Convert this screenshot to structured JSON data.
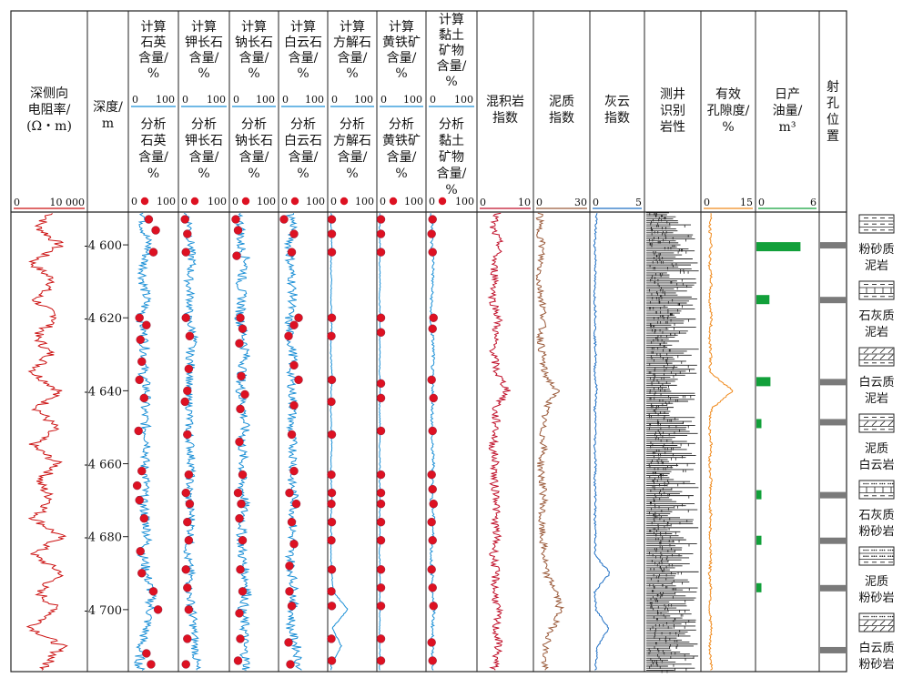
{
  "colors": {
    "resistivity": "#cc1111",
    "mineral": "#1a8fd6",
    "dot": "#dd1122",
    "mixed": "#c0102a",
    "mud": "#9a5a3a",
    "dolo": "#1f6fc4",
    "porosity": "#f08a1c",
    "oil": "#12a03a",
    "perf": "#7a7a7a"
  },
  "tracks": {
    "res": {
      "header": [
        "深侧向",
        "电阻率/",
        "(Ω・m)"
      ],
      "scale_min": "0",
      "scale_max": "10 000"
    },
    "depth": {
      "header": [
        "深度/",
        "m"
      ]
    },
    "quartz": {
      "calc": [
        "计算",
        "石英",
        "含量/",
        "%"
      ],
      "analysis": [
        "分析",
        "石英",
        "含量/",
        "%"
      ],
      "scale_min": "0",
      "scale_max": "100",
      "dot_max": "100"
    },
    "kfeld": {
      "calc": [
        "计算",
        "钾长石",
        "含量/",
        "%"
      ],
      "analysis": [
        "分析",
        "钾长石",
        "含量/",
        "%"
      ],
      "scale_min": "0",
      "scale_max": "100",
      "dot_max": "100"
    },
    "plag": {
      "calc": [
        "计算",
        "钠长石",
        "含量/",
        "%"
      ],
      "analysis": [
        "分析",
        "钠长石",
        "含量/",
        "%"
      ],
      "scale_min": "0",
      "scale_max": "100",
      "dot_max": "100"
    },
    "dolo": {
      "calc": [
        "计算",
        "白云石",
        "含量/",
        "%"
      ],
      "analysis": [
        "分析",
        "白云石",
        "含量/",
        "%"
      ],
      "scale_min": "0",
      "scale_max": "100",
      "dot_max": "100"
    },
    "calc": {
      "calc": [
        "计算",
        "方解石",
        "含量/",
        "%"
      ],
      "analysis": [
        "分析",
        "方解石",
        "含量/",
        "%"
      ],
      "scale_min": "0",
      "scale_max": "100",
      "dot_max": "100"
    },
    "pyr": {
      "calc": [
        "计算",
        "黄铁矿",
        "含量/",
        "%"
      ],
      "analysis": [
        "分析",
        "黄铁矿",
        "含量/",
        "%"
      ],
      "scale_min": "0",
      "scale_max": "100",
      "dot_max": "100"
    },
    "clay": {
      "calc": [
        "计算",
        "黏土",
        "矿物",
        "含量/",
        "%"
      ],
      "analysis": [
        "分析",
        "黏土",
        "矿物",
        "含量/",
        "%"
      ],
      "scale_min": "0",
      "scale_max": "100",
      "dot_max": "100"
    },
    "mix": {
      "header": [
        "混积岩",
        "指数"
      ],
      "scale_min": "0",
      "scale_max": "10"
    },
    "mud": {
      "header": [
        "泥质",
        "指数"
      ],
      "scale_min": "0",
      "scale_max": "30"
    },
    "dolo_idx": {
      "header": [
        "灰云",
        "指数"
      ],
      "scale_min": "0",
      "scale_max": "5"
    },
    "litho": {
      "header": [
        "测井",
        "识别",
        "岩性"
      ]
    },
    "poro": {
      "header": [
        "有效",
        "孔隙度/",
        "%"
      ],
      "scale_min": "0",
      "scale_max": "15"
    },
    "oil": {
      "header": [
        "日产",
        "油量/",
        "m³"
      ],
      "scale_min": "0",
      "scale_max": "6"
    },
    "perf": {
      "header": [
        "射",
        "孔",
        "位",
        "置"
      ]
    }
  },
  "legend": [
    {
      "pattern": "dash-dash",
      "lines": [
        "粉砂质",
        "泥岩"
      ]
    },
    {
      "pattern": "brick-dash",
      "lines": [
        "石灰质",
        "泥岩"
      ]
    },
    {
      "pattern": "slash-dash",
      "lines": [
        "白云质",
        "泥岩"
      ]
    },
    {
      "pattern": "dash-slash",
      "lines": [
        "泥质",
        "白云岩"
      ]
    },
    {
      "pattern": "dots-brick",
      "lines": [
        "石灰质",
        "粉砂岩"
      ]
    },
    {
      "pattern": "dots-dash",
      "lines": [
        "泥质",
        "粉砂岩"
      ]
    },
    {
      "pattern": "dots-slash",
      "lines": [
        "白云质",
        "粉砂岩"
      ]
    }
  ],
  "chart_data": {
    "type": "line",
    "title": "",
    "y_axis": {
      "label": "深度/m",
      "range": [
        4591,
        4717
      ],
      "ticks": [
        4600,
        4620,
        4640,
        4660,
        4680,
        4700
      ],
      "tick_labels": [
        "-4 600",
        "-4 620",
        "-4 640",
        "-4 660",
        "-4 680",
        "-4 700"
      ]
    },
    "depth_curve_samples": [
      4591,
      4595,
      4600,
      4605,
      4610,
      4615,
      4620,
      4625,
      4630,
      4635,
      4640,
      4645,
      4650,
      4655,
      4660,
      4665,
      4670,
      4675,
      4680,
      4685,
      4690,
      4695,
      4700,
      4705,
      4710,
      4715
    ],
    "series": [
      {
        "name": "深侧向电阻率/(Ω・m)",
        "range": [
          0,
          10000
        ],
        "values": [
          5600,
          3400,
          6500,
          2600,
          5800,
          3000,
          6200,
          3200,
          5200,
          2800,
          6400,
          3400,
          5800,
          2700,
          6200,
          3600,
          5400,
          3000,
          6600,
          2800,
          6800,
          3400,
          6100,
          2600,
          6700,
          4600
        ]
      },
      {
        "name": "计算石英含量/%",
        "range": [
          0,
          100
        ],
        "values": [
          32,
          28,
          40,
          30,
          28,
          35,
          25,
          30,
          32,
          28,
          36,
          30,
          33,
          40,
          30,
          34,
          26,
          34,
          38,
          28,
          35,
          45,
          44,
          35,
          22,
          20
        ]
      },
      {
        "name": "计算钾长石含量/%",
        "range": [
          0,
          100
        ],
        "values": [
          15,
          20,
          22,
          25,
          18,
          22,
          16,
          30,
          20,
          24,
          14,
          20,
          18,
          22,
          24,
          20,
          18,
          24,
          22,
          14,
          22,
          18,
          26,
          28,
          32,
          34
        ]
      },
      {
        "name": "计算钠长石含量/%",
        "range": [
          0,
          100
        ],
        "values": [
          10,
          22,
          20,
          35,
          20,
          24,
          18,
          28,
          32,
          24,
          20,
          28,
          30,
          24,
          26,
          22,
          30,
          26,
          22,
          24,
          30,
          38,
          24,
          30,
          28,
          34
        ]
      },
      {
        "name": "计算白云石含量/%",
        "range": [
          0,
          100
        ],
        "values": [
          22,
          30,
          20,
          22,
          26,
          28,
          18,
          20,
          28,
          24,
          26,
          28,
          22,
          28,
          30,
          24,
          32,
          28,
          26,
          22,
          26,
          30,
          28,
          22,
          36,
          40
        ]
      },
      {
        "name": "计算方解石含量/%",
        "range": [
          0,
          100
        ],
        "values": [
          4,
          3,
          5,
          3,
          4,
          3,
          5,
          4,
          3,
          5,
          4,
          3,
          4,
          5,
          3,
          4,
          5,
          3,
          4,
          3,
          5,
          8,
          40,
          6,
          26,
          4
        ]
      },
      {
        "name": "计算黄铁矿含量/%",
        "range": [
          0,
          100
        ],
        "values": [
          3,
          2,
          3,
          2,
          3,
          2,
          3,
          2,
          3,
          2,
          3,
          2,
          3,
          2,
          3,
          2,
          3,
          2,
          3,
          2,
          3,
          2,
          3,
          2,
          3,
          2
        ]
      },
      {
        "name": "计算黏土矿物含量/%",
        "range": [
          0,
          100
        ],
        "values": [
          6,
          10,
          8,
          12,
          10,
          8,
          6,
          10,
          12,
          9,
          11,
          10,
          8,
          9,
          12,
          10,
          8,
          12,
          10,
          7,
          9,
          11,
          13,
          10,
          9,
          12
        ]
      },
      {
        "name": "混积岩指数",
        "range": [
          0,
          10
        ],
        "values": [
          3.5,
          2.5,
          4,
          2.8,
          3.2,
          2.6,
          3.8,
          3,
          2.8,
          3.4,
          5.5,
          3,
          3.4,
          2.6,
          3.2,
          2.8,
          3.6,
          3,
          3.4,
          2.8,
          3.2,
          3,
          3.6,
          3.2,
          3.8,
          3
        ]
      },
      {
        "name": "泥质指数",
        "range": [
          0,
          30
        ],
        "values": [
          3,
          2,
          4,
          3,
          2,
          4,
          5,
          3,
          4,
          5,
          12,
          6,
          4,
          5,
          3,
          4,
          5,
          3,
          4,
          5,
          6,
          12,
          14,
          10,
          6,
          5
        ]
      },
      {
        "name": "灰云指数",
        "range": [
          0,
          5
        ],
        "values": [
          0.5,
          0.4,
          0.3,
          0.4,
          0.3,
          0.3,
          0.4,
          0.3,
          0.4,
          0.3,
          0.5,
          0.3,
          0.4,
          0.3,
          0.4,
          0.3,
          0.4,
          0.3,
          0.4,
          0.3,
          1.8,
          0.3,
          0.4,
          1.7,
          0.6,
          0.4
        ]
      },
      {
        "name": "有效孔隙度/%",
        "range": [
          0,
          15
        ],
        "values": [
          2.5,
          2,
          2.5,
          2,
          2.5,
          2,
          2.6,
          2,
          2.5,
          2,
          9,
          2.5,
          2,
          2.5,
          2,
          2.5,
          2,
          2.5,
          2,
          2.5,
          2,
          2.5,
          2,
          2.5,
          2,
          2.5
        ]
      }
    ],
    "analysis_points": {
      "quartz": [
        [
          4593,
          40
        ],
        [
          4596,
          55
        ],
        [
          4602,
          50
        ],
        [
          4620,
          20
        ],
        [
          4622,
          35
        ],
        [
          4626,
          22
        ],
        [
          4632,
          25
        ],
        [
          4637,
          20
        ],
        [
          4642,
          30
        ],
        [
          4651,
          18
        ],
        [
          4662,
          25
        ],
        [
          4666,
          15
        ],
        [
          4670,
          20
        ],
        [
          4675,
          30
        ],
        [
          4684,
          22
        ],
        [
          4690,
          25
        ],
        [
          4695,
          50
        ],
        [
          4700,
          60
        ],
        [
          4712,
          35
        ],
        [
          4715,
          45
        ]
      ],
      "kfeld": [
        [
          4593,
          10
        ],
        [
          4597,
          15
        ],
        [
          4602,
          12
        ],
        [
          4620,
          12
        ],
        [
          4625,
          20
        ],
        [
          4634,
          18
        ],
        [
          4640,
          15
        ],
        [
          4643,
          10
        ],
        [
          4652,
          15
        ],
        [
          4663,
          18
        ],
        [
          4668,
          12
        ],
        [
          4671,
          20
        ],
        [
          4676,
          15
        ],
        [
          4681,
          18
        ],
        [
          4689,
          12
        ],
        [
          4694,
          15
        ],
        [
          4700,
          18
        ],
        [
          4708,
          15
        ],
        [
          4715,
          12
        ]
      ],
      "plag": [
        [
          4593,
          10
        ],
        [
          4596,
          15
        ],
        [
          4603,
          12
        ],
        [
          4620,
          20
        ],
        [
          4623,
          25
        ],
        [
          4627,
          18
        ],
        [
          4636,
          22
        ],
        [
          4641,
          30
        ],
        [
          4645,
          20
        ],
        [
          4654,
          18
        ],
        [
          4663,
          25
        ],
        [
          4668,
          15
        ],
        [
          4671,
          22
        ],
        [
          4675,
          18
        ],
        [
          4681,
          25
        ],
        [
          4689,
          20
        ],
        [
          4695,
          25
        ],
        [
          4701,
          18
        ],
        [
          4708,
          20
        ],
        [
          4714,
          15
        ]
      ],
      "dolo": [
        [
          4593,
          8
        ],
        [
          4597,
          30
        ],
        [
          4602,
          25
        ],
        [
          4620,
          40
        ],
        [
          4622,
          30
        ],
        [
          4625,
          18
        ],
        [
          4633,
          30
        ],
        [
          4637,
          40
        ],
        [
          4644,
          30
        ],
        [
          4652,
          25
        ],
        [
          4662,
          30
        ],
        [
          4668,
          20
        ],
        [
          4671,
          35
        ],
        [
          4676,
          25
        ],
        [
          4682,
          30
        ],
        [
          4688,
          20
        ],
        [
          4695,
          20
        ],
        [
          4699,
          25
        ],
        [
          4709,
          18
        ],
        [
          4715,
          22
        ]
      ],
      "calc": [
        [
          4593,
          5
        ],
        [
          4597,
          5
        ],
        [
          4602,
          5
        ],
        [
          4620,
          5
        ],
        [
          4625,
          4
        ],
        [
          4637,
          5
        ],
        [
          4643,
          4
        ],
        [
          4652,
          5
        ],
        [
          4663,
          4
        ],
        [
          4668,
          5
        ],
        [
          4671,
          4
        ],
        [
          4676,
          5
        ],
        [
          4681,
          4
        ],
        [
          4689,
          5
        ],
        [
          4695,
          4
        ],
        [
          4699,
          5
        ],
        [
          4708,
          4
        ],
        [
          4714,
          5
        ]
      ],
      "pyr": [
        [
          4593,
          5
        ],
        [
          4597,
          5
        ],
        [
          4602,
          5
        ],
        [
          4620,
          5
        ],
        [
          4624,
          5
        ],
        [
          4638,
          5
        ],
        [
          4642,
          5
        ],
        [
          4651,
          5
        ],
        [
          4663,
          5
        ],
        [
          4668,
          5
        ],
        [
          4671,
          5
        ],
        [
          4676,
          5
        ],
        [
          4681,
          5
        ],
        [
          4689,
          5
        ],
        [
          4694,
          5
        ],
        [
          4699,
          5
        ],
        [
          4708,
          5
        ],
        [
          4714,
          5
        ]
      ],
      "clay": [
        [
          4593,
          10
        ],
        [
          4597,
          8
        ],
        [
          4602,
          10
        ],
        [
          4620,
          12
        ],
        [
          4623,
          10
        ],
        [
          4637,
          8
        ],
        [
          4642,
          12
        ],
        [
          4651,
          10
        ],
        [
          4663,
          8
        ],
        [
          4667,
          10
        ],
        [
          4671,
          12
        ],
        [
          4676,
          8
        ],
        [
          4681,
          10
        ],
        [
          4689,
          8
        ],
        [
          4694,
          10
        ],
        [
          4699,
          12
        ],
        [
          4709,
          8
        ],
        [
          4714,
          10
        ]
      ]
    },
    "daily_oil_bars": [
      [
        4600.5,
        4.4
      ],
      [
        4615,
        1.3
      ],
      [
        4637.5,
        1.4
      ],
      [
        4649,
        0.5
      ],
      [
        4668.5,
        0.5
      ],
      [
        4681,
        0.5
      ],
      [
        4694,
        0.5
      ]
    ],
    "perforation_depths": [
      4600,
      4615,
      4637.5,
      4648.5,
      4668.5,
      4681,
      4694,
      4711
    ]
  }
}
